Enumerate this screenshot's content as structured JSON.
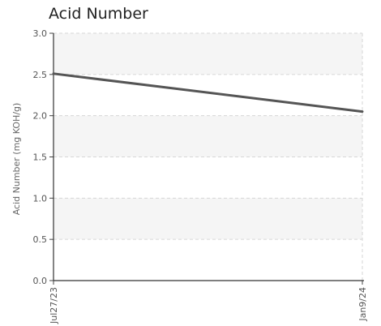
{
  "chart_data": {
    "type": "line",
    "title": "Acid Number",
    "xlabel": "",
    "ylabel": "Acid Number (mg KOH/g)",
    "x": [
      "Jul27/23",
      "Jan9/24"
    ],
    "series": [
      {
        "values": [
          2.51,
          2.05
        ],
        "color": "#555555"
      }
    ],
    "ylim": [
      0,
      3.0
    ],
    "yticks": [
      "0.0",
      "0.5",
      "1.0",
      "1.5",
      "2.0",
      "2.5",
      "3.0"
    ],
    "grid": true,
    "legend": "none",
    "band_color": "#f5f5f5"
  }
}
